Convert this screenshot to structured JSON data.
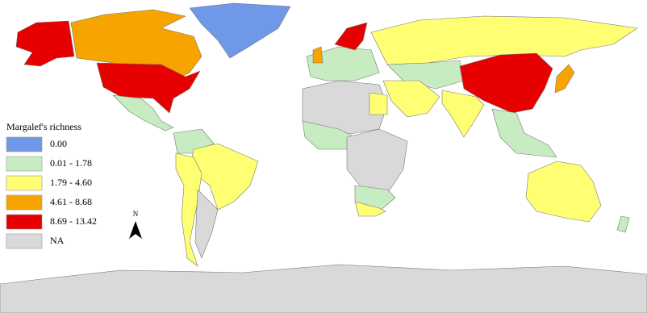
{
  "legend": {
    "title": "Margalef's richness",
    "items": [
      {
        "label": "0.00",
        "color": "#6f98e8"
      },
      {
        "label": "0.01 - 1.78",
        "color": "#c8ecc2"
      },
      {
        "label": "1.79 - 4.60",
        "color": "#ffff73"
      },
      {
        "label": "4.61 - 8.68",
        "color": "#f7a300"
      },
      {
        "label": "8.69 - 13.42",
        "color": "#e60000"
      },
      {
        "label": "NA",
        "color": "#d9d9d9"
      }
    ]
  },
  "north_arrow": "N"
}
